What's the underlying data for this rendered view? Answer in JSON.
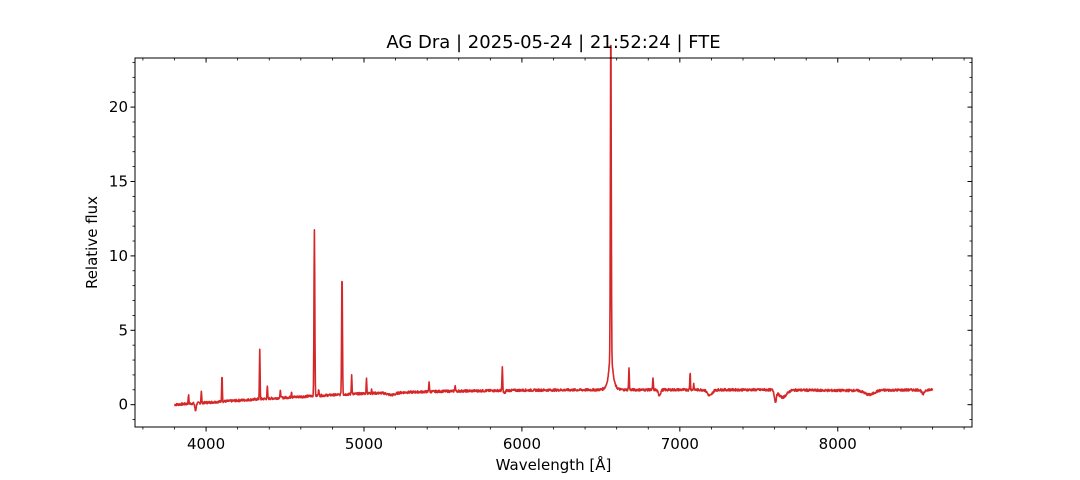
{
  "chart_data": {
    "type": "line",
    "title": "AG Dra | 2025-05-24 | 21:52:24 | FTE",
    "xlabel": "Wavelength [Å]",
    "ylabel": "Relative flux",
    "xlim": [
      3550,
      8850
    ],
    "ylim": [
      -1.5,
      23.3
    ],
    "xticks": [
      4000,
      5000,
      6000,
      7000,
      8000
    ],
    "xtick_labels": [
      "4000",
      "5000",
      "6000",
      "7000",
      "8000"
    ],
    "yticks": [
      0,
      5,
      10,
      15,
      20
    ],
    "ytick_labels": [
      "0",
      "5",
      "10",
      "15",
      "20"
    ],
    "grid": false,
    "series": [
      {
        "color": "#d62728",
        "continuum": [
          [
            3800,
            0.0
          ],
          [
            4300,
            0.35
          ],
          [
            4700,
            0.6
          ],
          [
            5000,
            0.75
          ],
          [
            5500,
            0.9
          ],
          [
            6000,
            0.97
          ],
          [
            6500,
            1.0
          ],
          [
            7000,
            1.0
          ],
          [
            7600,
            1.0
          ],
          [
            8000,
            0.95
          ],
          [
            8600,
            1.0
          ]
        ],
        "emission_lines": [
          [
            3889,
            0.6
          ],
          [
            3970,
            0.8
          ],
          [
            4101,
            1.9
          ],
          [
            4340,
            3.3
          ],
          [
            4388,
            0.8
          ],
          [
            4471,
            0.5
          ],
          [
            4541,
            0.4
          ],
          [
            4686,
            11.2
          ],
          [
            4713,
            0.5
          ],
          [
            4861,
            8.2
          ],
          [
            4922,
            1.3
          ],
          [
            5016,
            1.0
          ],
          [
            5048,
            0.3
          ],
          [
            5412,
            0.7
          ],
          [
            5577,
            0.4
          ],
          [
            5876,
            1.6
          ],
          [
            6563,
            21.2
          ],
          [
            6678,
            1.5
          ],
          [
            6830,
            0.8
          ],
          [
            7065,
            1.2
          ],
          [
            7088,
            0.4
          ]
        ],
        "absorption_bands": [
          [
            3933,
            0.5,
            4
          ],
          [
            5175,
            0.15,
            25
          ],
          [
            5890,
            0.2,
            5
          ],
          [
            6870,
            0.35,
            8
          ],
          [
            7190,
            0.4,
            15
          ],
          [
            7605,
            0.7,
            6
          ],
          [
            7650,
            0.5,
            25
          ],
          [
            8200,
            0.3,
            30
          ],
          [
            8540,
            0.3,
            8
          ]
        ],
        "wavelength_range": [
          3800,
          8600
        ]
      }
    ]
  }
}
